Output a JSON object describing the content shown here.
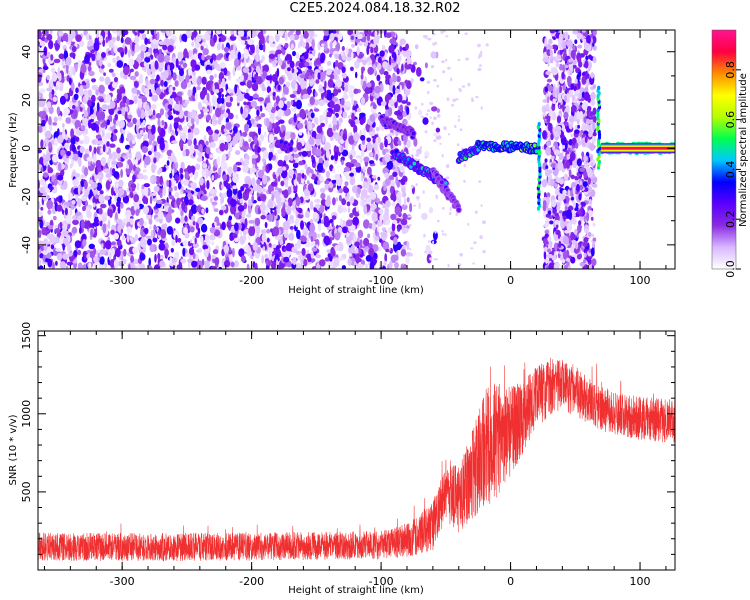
{
  "title": "C2E5.2024.084.18.32.R02",
  "chart_data": [
    {
      "type": "heatmap",
      "xlabel": "Height of straight line (km)",
      "ylabel": "Frequency (Hz)",
      "xlim": [
        -365,
        127
      ],
      "ylim": [
        -50,
        49
      ],
      "xticks": [
        -300,
        -200,
        -100,
        0,
        100
      ],
      "yticks": [
        -40,
        -20,
        0,
        20,
        40
      ],
      "colorbar": {
        "label": "Normalized spectral amplitude",
        "range": [
          0,
          0.96
        ],
        "ticks": [
          0.0,
          0.2,
          0.4,
          0.6,
          0.8
        ],
        "colormap": [
          "#ffffff",
          "#d9b8ff",
          "#8a2be2",
          "#5a00ff",
          "#0000ff",
          "#00c8ff",
          "#00ff50",
          "#b4ff00",
          "#ffff00",
          "#ff8c00",
          "#ff0040",
          "#ff1493"
        ]
      },
      "noise_region": {
        "x": [
          -365,
          -78
        ],
        "amplitude": [
          0.05,
          0.3
        ]
      },
      "noise_bands": [
        {
          "x": [
            26,
            65
          ]
        }
      ],
      "features": [
        {
          "x": [
            -180,
            -170
          ],
          "y": [
            2,
            0
          ],
          "amplitude": 0.35
        },
        {
          "x": [
            -100,
            -75
          ],
          "y": [
            12,
            6
          ],
          "amplitude": 0.3
        },
        {
          "x": [
            -90,
            -50
          ],
          "y": [
            -2,
            -15
          ],
          "amplitude": 0.45
        },
        {
          "x": [
            -60,
            -40
          ],
          "y": [
            -10,
            -25
          ],
          "amplitude": 0.25
        },
        {
          "x": [
            -40,
            -25
          ],
          "y": [
            -4,
            0
          ],
          "amplitude": 0.5
        },
        {
          "x": [
            -25,
            20
          ],
          "y": [
            1,
            0
          ],
          "amplitude": 0.6
        },
        {
          "x": [
            70,
            127
          ],
          "y": [
            0,
            0
          ],
          "amplitude": 0.9
        }
      ],
      "vertical_bursts": [
        {
          "x": 22,
          "y": [
            -25,
            10
          ],
          "amplitude": 0.45
        },
        {
          "x": 68,
          "y": [
            -8,
            25
          ],
          "amplitude": 0.5
        }
      ]
    },
    {
      "type": "line",
      "xlabel": "Height of straight line (km)",
      "ylabel": "SNR (10 * v/v)",
      "xlim": [
        -365,
        127
      ],
      "ylim": [
        0,
        1530
      ],
      "xticks": [
        -300,
        -200,
        -100,
        0,
        100
      ],
      "yticks": [
        500,
        1000,
        1500
      ],
      "color": "#f03030",
      "envelope": {
        "x": [
          -365,
          -300,
          -200,
          -100,
          -80,
          -60,
          -50,
          -40,
          -30,
          -20,
          -10,
          0,
          10,
          20,
          30,
          40,
          50,
          60,
          80,
          100,
          127
        ],
        "mean": [
          150,
          145,
          150,
          160,
          190,
          280,
          520,
          450,
          600,
          780,
          830,
          900,
          980,
          1100,
          1170,
          1180,
          1150,
          1080,
          1000,
          970,
          950
        ],
        "spread": [
          90,
          90,
          90,
          90,
          110,
          160,
          200,
          220,
          280,
          380,
          380,
          300,
          250,
          200,
          180,
          170,
          160,
          150,
          140,
          140,
          140
        ]
      }
    }
  ]
}
